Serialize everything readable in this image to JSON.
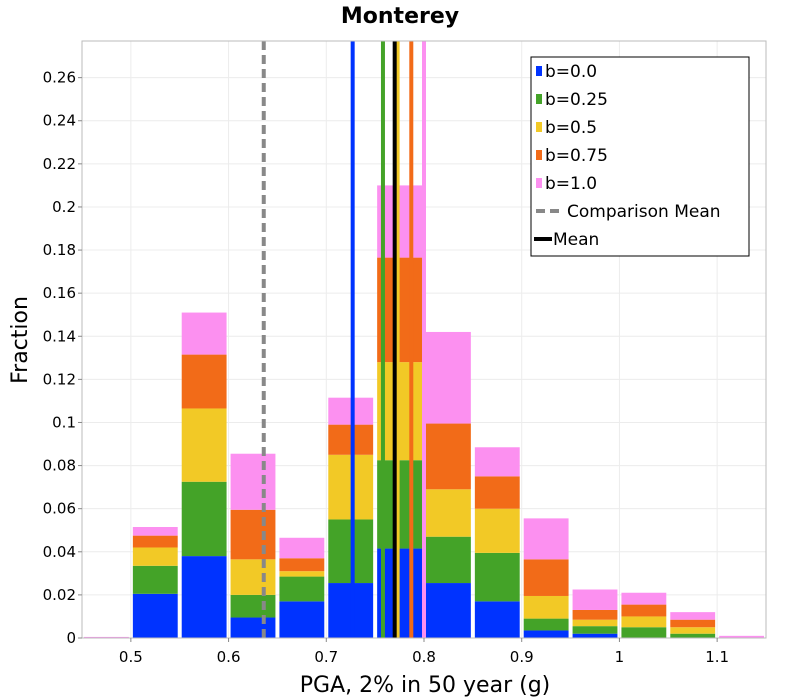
{
  "chart_data": {
    "type": "bar",
    "stacked": true,
    "title": "Monterey",
    "xlabel": "PGA, 2% in 50 year (g)",
    "ylabel": "Fraction",
    "xlim": [
      0.45,
      1.15
    ],
    "ylim": [
      0,
      0.277
    ],
    "grid": true,
    "legend_position": "top-right",
    "xticks": [
      0.5,
      0.6,
      0.7,
      0.8,
      0.9,
      1.0,
      1.1
    ],
    "xtick_labels": [
      "0.5",
      "0.6",
      "0.7",
      "0.8",
      "0.9",
      "1",
      "1.1"
    ],
    "yticks": [
      0,
      0.02,
      0.04,
      0.06,
      0.08,
      0.1,
      0.12,
      0.14,
      0.16,
      0.18,
      0.2,
      0.22,
      0.24,
      0.26
    ],
    "ytick_labels": [
      "0",
      "0.02",
      "0.04",
      "0.06",
      "0.08",
      "0.1",
      "0.12",
      "0.14",
      "0.16",
      "0.18",
      "0.2",
      "0.22",
      "0.24",
      "0.26"
    ],
    "bin_width": 0.05,
    "bin_centers": [
      0.475,
      0.525,
      0.575,
      0.625,
      0.675,
      0.725,
      0.775,
      0.825,
      0.875,
      0.925,
      0.975,
      1.025,
      1.075,
      1.125
    ],
    "series": [
      {
        "name": "b=0.0",
        "color": "#0033ff",
        "values": [
          0,
          0.0205,
          0.038,
          0.0095,
          0.017,
          0.0255,
          0.0415,
          0.0255,
          0.017,
          0.0035,
          0.002,
          0,
          0,
          0
        ]
      },
      {
        "name": "b=0.25",
        "color": "#44a328",
        "values": [
          0,
          0.013,
          0.0345,
          0.0105,
          0.0115,
          0.0295,
          0.041,
          0.0215,
          0.0225,
          0.0055,
          0.0035,
          0.005,
          0.002,
          0
        ]
      },
      {
        "name": "b=0.5",
        "color": "#f2c926",
        "values": [
          0,
          0.0085,
          0.034,
          0.0165,
          0.0025,
          0.03,
          0.0455,
          0.022,
          0.0205,
          0.0105,
          0.003,
          0.005,
          0.003,
          0
        ]
      },
      {
        "name": "b=0.75",
        "color": "#f26b18",
        "values": [
          0,
          0.0055,
          0.025,
          0.023,
          0.006,
          0.014,
          0.0485,
          0.0305,
          0.015,
          0.017,
          0.0045,
          0.0055,
          0.0035,
          0
        ]
      },
      {
        "name": "b=1.0",
        "color": "#fc90f0",
        "values": [
          0.0005,
          0.004,
          0.0195,
          0.026,
          0.0095,
          0.0125,
          0.0335,
          0.0425,
          0.0135,
          0.019,
          0.0095,
          0.0055,
          0.0035,
          0.001
        ]
      }
    ],
    "reference_lines": [
      {
        "name": "b=0.0",
        "x": 0.727,
        "color": "#0033ff",
        "style": "solid"
      },
      {
        "name": "b=0.25",
        "x": 0.758,
        "color": "#44a328",
        "style": "solid"
      },
      {
        "name": "b=0.5",
        "x": 0.773,
        "color": "#f2c926",
        "style": "solid"
      },
      {
        "name": "b=0.75",
        "x": 0.787,
        "color": "#f26b18",
        "style": "solid"
      },
      {
        "name": "b=1.0",
        "x": 0.8,
        "color": "#fc90f0",
        "style": "solid"
      },
      {
        "name": "Comparison Mean",
        "x": 0.636,
        "color": "#888888",
        "style": "dashed"
      },
      {
        "name": "Mean",
        "x": 0.77,
        "color": "#000000",
        "style": "solid"
      }
    ],
    "legend": [
      {
        "label": "b=0.0",
        "color": "#0033ff",
        "marker": "box"
      },
      {
        "label": "b=0.25",
        "color": "#44a328",
        "marker": "box"
      },
      {
        "label": "b=0.5",
        "color": "#f2c926",
        "marker": "box"
      },
      {
        "label": "b=0.75",
        "color": "#f26b18",
        "marker": "box"
      },
      {
        "label": "b=1.0",
        "color": "#fc90f0",
        "marker": "box"
      },
      {
        "label": "Comparison Mean",
        "color": "#888888",
        "marker": "dashed-line"
      },
      {
        "label": "Mean",
        "color": "#000000",
        "marker": "line"
      }
    ]
  }
}
